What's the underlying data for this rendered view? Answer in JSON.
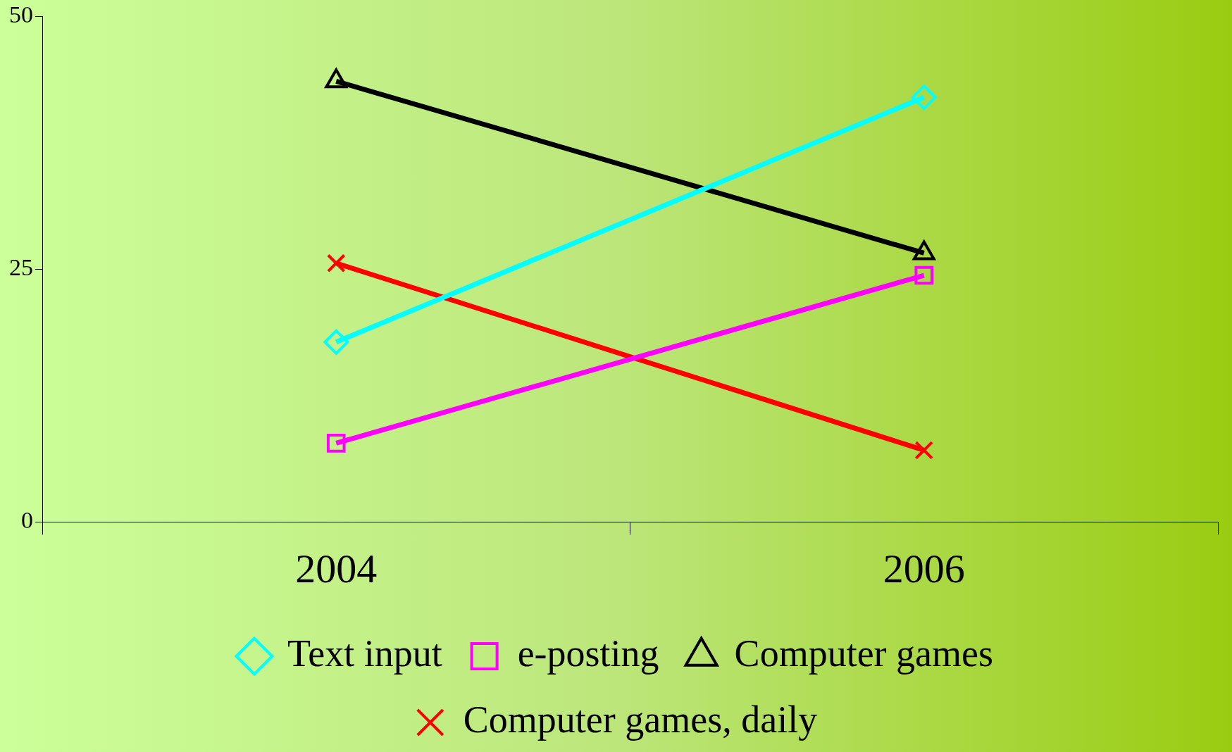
{
  "chart_data": {
    "type": "line",
    "categories": [
      "2004",
      "2006"
    ],
    "series": [
      {
        "name": "Text input",
        "color": "#00ffff",
        "marker": "diamond",
        "values": [
          17.8,
          42.0
        ]
      },
      {
        "name": "e-posting",
        "color": "#ff00ff",
        "marker": "square",
        "values": [
          7.8,
          24.4
        ]
      },
      {
        "name": "Computer games",
        "color": "#000000",
        "marker": "triangle",
        "values": [
          43.6,
          26.6
        ]
      },
      {
        "name": "Computer games, daily",
        "color": "#ff0000",
        "marker": "cross",
        "values": [
          25.6,
          7.1
        ]
      }
    ],
    "ylim": [
      0,
      50
    ],
    "yticks": [
      0,
      25,
      50
    ],
    "grid": false,
    "legend": "bottom"
  }
}
